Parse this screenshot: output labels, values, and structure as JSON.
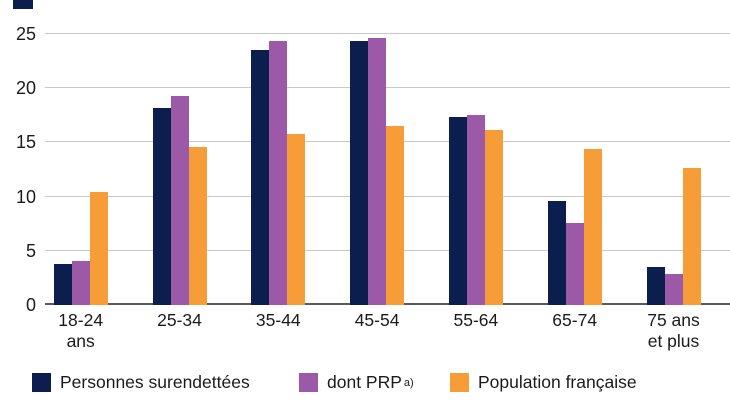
{
  "chart_data": {
    "type": "bar",
    "title": "",
    "categories": [
      "18-24 ans",
      "25-34",
      "35-44",
      "45-54",
      "55-64",
      "65-74",
      "75 ans et plus"
    ],
    "category_display": [
      [
        "18-24",
        "ans"
      ],
      [
        "25-34"
      ],
      [
        "35-44"
      ],
      [
        "45-54"
      ],
      [
        "55-64"
      ],
      [
        "65-74"
      ],
      [
        "75 ans",
        "et plus"
      ]
    ],
    "series": [
      {
        "name": "Personnes surendettées",
        "color": "#0c1e4e",
        "values": [
          3.8,
          18.2,
          23.5,
          24.4,
          17.3,
          9.6,
          3.5
        ]
      },
      {
        "name": "dont PRP",
        "name_superscript": "a)",
        "color": "#9c59a8",
        "values": [
          4.1,
          19.3,
          24.4,
          24.6,
          17.5,
          7.6,
          2.9
        ]
      },
      {
        "name": "Population française",
        "color": "#f69d38",
        "values": [
          10.4,
          14.6,
          15.8,
          16.5,
          16.1,
          14.4,
          12.6
        ]
      }
    ],
    "y_axis": {
      "min": 0,
      "max": 25,
      "step": 5,
      "ticks": [
        0,
        5,
        10,
        15,
        20,
        25
      ]
    },
    "grid": "horizontal",
    "legend_position": "bottom",
    "colors": {
      "navy": "#0c1e4e",
      "purple": "#9c59a8",
      "orange": "#f69d38",
      "gridline": "#c9c9c9",
      "baseline": "#5a5a5c"
    }
  }
}
